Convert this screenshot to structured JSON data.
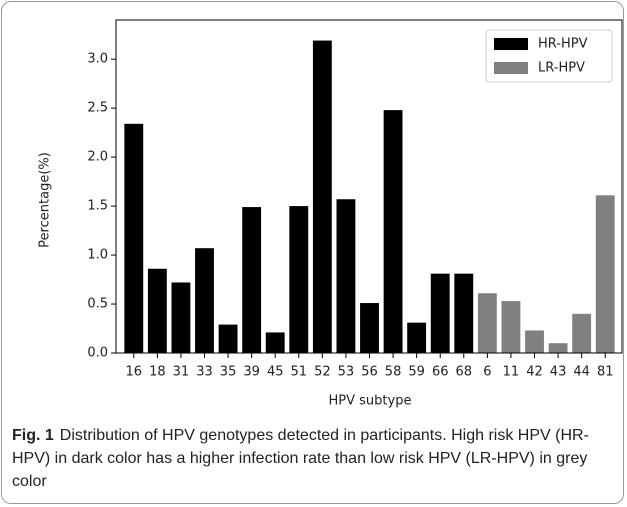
{
  "chart_data": {
    "type": "bar",
    "y_label": "Percentage(%)",
    "x_label": "HPV subtype",
    "categories": [
      "16",
      "18",
      "31",
      "33",
      "35",
      "39",
      "45",
      "51",
      "52",
      "53",
      "56",
      "58",
      "59",
      "66",
      "68",
      "6",
      "11",
      "42",
      "43",
      "44",
      "81"
    ],
    "series": [
      {
        "name": "HR-HPV",
        "color": "#000000",
        "values": [
          2.34,
          0.86,
          0.72,
          1.07,
          0.29,
          1.49,
          0.21,
          1.5,
          3.19,
          1.57,
          0.51,
          2.48,
          0.31,
          0.81,
          0.81,
          null,
          null,
          null,
          null,
          null,
          null
        ]
      },
      {
        "name": "LR-HPV",
        "color": "#808080",
        "values": [
          null,
          null,
          null,
          null,
          null,
          null,
          null,
          null,
          null,
          null,
          null,
          null,
          null,
          null,
          null,
          0.61,
          0.53,
          0.23,
          0.1,
          0.4,
          1.61
        ]
      }
    ],
    "ylim": [
      0,
      3.4
    ],
    "yticks": [
      {
        "value": 0,
        "label": "0.0"
      },
      0.5,
      {
        "value": 1,
        "label": "1.0"
      },
      1.5,
      {
        "value": 2,
        "label": "2.0"
      },
      2.5,
      {
        "value": 3,
        "label": "3.0"
      }
    ],
    "legend": "upper right",
    "grid": false
  },
  "caption": {
    "label": "Fig. 1",
    "text": "Distribution of HPV genotypes detected in participants. High risk HPV (HR-HPV) in dark color has a higher infection rate than low risk HPV (LR-HPV) in grey color"
  }
}
